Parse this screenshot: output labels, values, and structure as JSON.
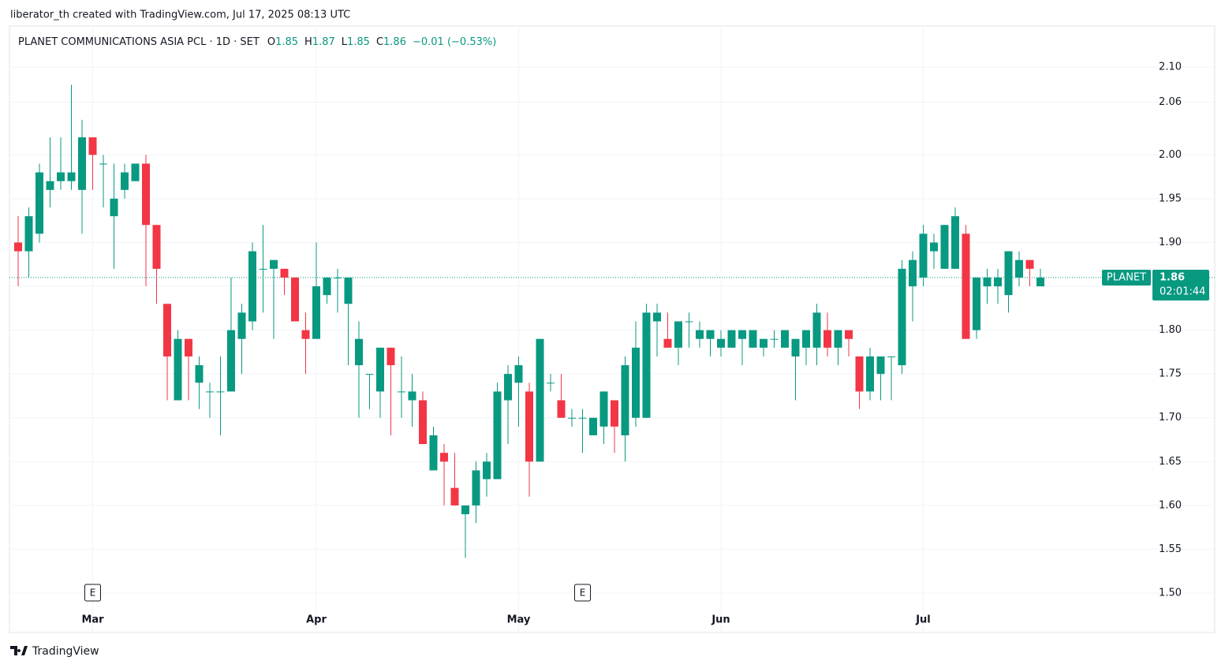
{
  "header": {
    "credit": "liberator_th created with TradingView.com, Jul 17, 2025 08:13 UTC"
  },
  "footer": {
    "brand": "TradingView"
  },
  "chart_data": {
    "type": "candlestick",
    "title": "PLANET COMMUNICATIONS ASIA PCL · 1D · SET",
    "legend_labels": {
      "open": "O",
      "high": "H",
      "low": "L",
      "close": "C"
    },
    "change": "−0.01 (−0.53%)",
    "x": [
      null,
      null,
      null,
      null,
      null,
      null,
      null,
      "Mar",
      null,
      null,
      null,
      null,
      null,
      null,
      null,
      null,
      null,
      null,
      null,
      null,
      null,
      null,
      null,
      null,
      null,
      null,
      null,
      null,
      "Apr",
      null,
      null,
      null,
      null,
      null,
      null,
      null,
      null,
      null,
      null,
      null,
      null,
      null,
      null,
      null,
      null,
      null,
      null,
      "May",
      null,
      null,
      null,
      null,
      null,
      null,
      null,
      null,
      null,
      null,
      null,
      null,
      null,
      null,
      null,
      null,
      null,
      null,
      "Jun",
      null,
      null,
      null,
      null,
      null,
      null,
      null,
      null,
      null,
      null,
      null,
      null,
      null,
      null,
      null,
      null,
      null,
      null,
      "Jul",
      null,
      null,
      null,
      null,
      null,
      null,
      null,
      null,
      null,
      null,
      null
    ],
    "open": [
      1.9,
      1.89,
      1.91,
      1.96,
      1.97,
      1.97,
      1.96,
      2.02,
      1.99,
      1.93,
      1.96,
      1.97,
      1.99,
      1.92,
      1.83,
      1.72,
      1.79,
      1.74,
      1.73,
      1.73,
      1.73,
      1.79,
      1.81,
      1.87,
      1.87,
      1.87,
      1.86,
      1.8,
      1.79,
      1.84,
      1.86,
      1.83,
      1.76,
      1.75,
      1.73,
      1.78,
      1.73,
      1.72,
      1.72,
      1.64,
      1.66,
      1.62,
      1.59,
      1.6,
      1.63,
      1.63,
      1.72,
      1.74,
      1.73,
      1.65,
      1.74,
      1.72,
      1.7,
      1.7,
      1.68,
      1.69,
      1.72,
      1.68,
      1.7,
      1.7,
      1.81,
      1.79,
      1.78,
      1.81,
      1.79,
      1.79,
      1.78,
      1.78,
      1.79,
      1.78,
      1.78,
      1.79,
      1.78,
      1.77,
      1.78,
      1.78,
      1.8,
      1.78,
      1.8,
      1.77,
      1.73,
      1.75,
      1.77,
      1.76,
      1.85,
      1.86,
      1.89,
      1.87,
      1.87,
      1.91,
      1.8,
      1.85,
      1.85,
      1.84,
      1.86,
      1.88,
      1.85
    ],
    "high": [
      1.93,
      1.94,
      1.99,
      2.02,
      2.02,
      2.08,
      2.04,
      2.02,
      2.0,
      1.99,
      1.99,
      1.99,
      2.0,
      1.92,
      1.83,
      1.8,
      1.79,
      1.77,
      1.74,
      1.77,
      1.86,
      1.83,
      1.9,
      1.92,
      1.88,
      1.87,
      1.86,
      1.82,
      1.9,
      1.86,
      1.87,
      1.86,
      1.81,
      1.75,
      1.78,
      1.78,
      1.77,
      1.75,
      1.73,
      1.69,
      1.67,
      1.66,
      1.6,
      1.65,
      1.66,
      1.74,
      1.76,
      1.77,
      1.74,
      1.79,
      1.75,
      1.75,
      1.71,
      1.71,
      1.7,
      1.73,
      1.72,
      1.77,
      1.81,
      1.83,
      1.83,
      1.82,
      1.81,
      1.82,
      1.81,
      1.8,
      1.8,
      1.8,
      1.8,
      1.8,
      1.79,
      1.8,
      1.8,
      1.79,
      1.8,
      1.83,
      1.82,
      1.8,
      1.8,
      1.77,
      1.78,
      1.77,
      1.77,
      1.88,
      1.89,
      1.92,
      1.91,
      1.92,
      1.94,
      1.92,
      1.86,
      1.87,
      1.87,
      1.89,
      1.89,
      1.88,
      1.87
    ],
    "low": [
      1.85,
      1.86,
      1.9,
      1.94,
      1.96,
      1.96,
      1.91,
      1.96,
      1.94,
      1.87,
      1.95,
      1.97,
      1.85,
      1.83,
      1.72,
      1.72,
      1.72,
      1.71,
      1.7,
      1.68,
      1.73,
      1.75,
      1.8,
      1.82,
      1.79,
      1.84,
      1.81,
      1.75,
      1.79,
      1.83,
      1.82,
      1.76,
      1.7,
      1.71,
      1.7,
      1.68,
      1.7,
      1.69,
      1.67,
      1.64,
      1.6,
      1.6,
      1.54,
      1.58,
      1.61,
      1.63,
      1.67,
      1.69,
      1.61,
      1.65,
      1.73,
      1.7,
      1.69,
      1.66,
      1.68,
      1.67,
      1.66,
      1.65,
      1.69,
      1.7,
      1.77,
      1.78,
      1.76,
      1.78,
      1.78,
      1.77,
      1.77,
      1.78,
      1.76,
      1.78,
      1.77,
      1.78,
      1.78,
      1.72,
      1.76,
      1.76,
      1.77,
      1.76,
      1.77,
      1.71,
      1.72,
      1.72,
      1.72,
      1.75,
      1.81,
      1.85,
      1.87,
      1.87,
      1.87,
      1.79,
      1.79,
      1.83,
      1.83,
      1.82,
      1.85,
      1.85,
      1.85
    ],
    "close": [
      1.89,
      1.93,
      1.98,
      1.97,
      1.98,
      1.98,
      2.02,
      2.0,
      1.99,
      1.95,
      1.98,
      1.99,
      1.92,
      1.87,
      1.77,
      1.79,
      1.77,
      1.76,
      1.73,
      1.73,
      1.8,
      1.82,
      1.89,
      1.87,
      1.88,
      1.86,
      1.81,
      1.79,
      1.85,
      1.86,
      1.86,
      1.86,
      1.79,
      1.75,
      1.78,
      1.76,
      1.73,
      1.73,
      1.67,
      1.68,
      1.65,
      1.6,
      1.6,
      1.64,
      1.65,
      1.73,
      1.75,
      1.76,
      1.65,
      1.79,
      1.74,
      1.7,
      1.7,
      1.7,
      1.7,
      1.73,
      1.69,
      1.76,
      1.78,
      1.82,
      1.82,
      1.78,
      1.81,
      1.81,
      1.8,
      1.8,
      1.79,
      1.8,
      1.8,
      1.8,
      1.79,
      1.79,
      1.8,
      1.79,
      1.8,
      1.82,
      1.78,
      1.8,
      1.79,
      1.73,
      1.77,
      1.77,
      1.77,
      1.87,
      1.88,
      1.91,
      1.9,
      1.92,
      1.93,
      1.79,
      1.86,
      1.86,
      1.86,
      1.89,
      1.88,
      1.87,
      1.86
    ],
    "up_color": "#089981",
    "down_color": "#f23645",
    "ylim": [
      1.455,
      2.147
    ],
    "yticks": [
      {
        "value": 1.5,
        "label": "1.50"
      },
      1.55,
      {
        "value": 1.6,
        "label": "1.60"
      },
      1.65,
      {
        "value": 1.7,
        "label": "1.70"
      },
      1.75,
      {
        "value": 1.8,
        "label": "1.80"
      },
      1.85,
      {
        "value": 1.9,
        "label": "1.90"
      },
      1.95,
      {
        "value": 2.0,
        "label": "2.00"
      },
      2.06,
      {
        "value": 2.1,
        "label": "2.10"
      }
    ],
    "grid": true,
    "price_line": {
      "symbol": "PLANET",
      "value": 1.86,
      "countdown": "02:01:44"
    },
    "events": {
      "label": "E",
      "index": [
        7,
        53
      ]
    }
  }
}
